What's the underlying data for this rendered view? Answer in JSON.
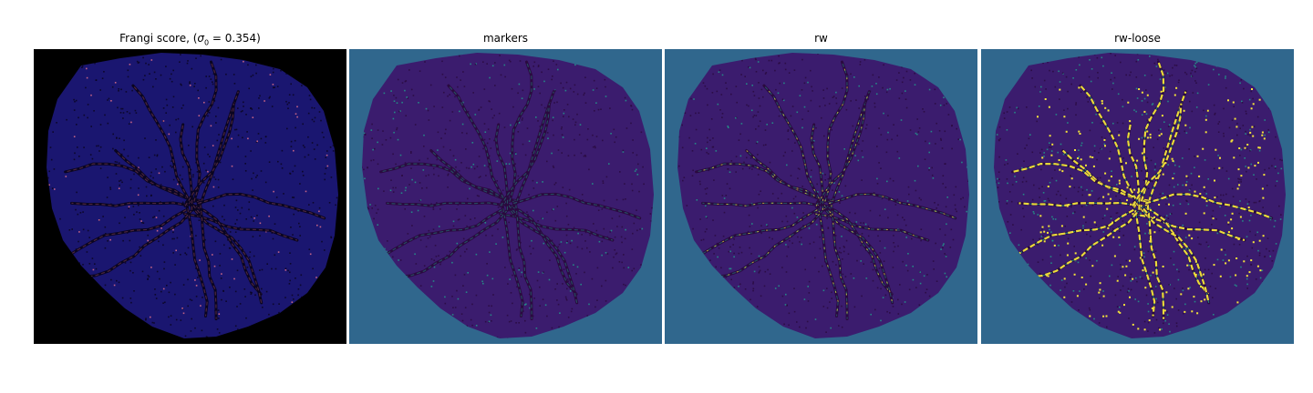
{
  "panels": [
    {
      "id": "frangi",
      "title_prefix": "Frangi score, (",
      "title_symbol": "σ",
      "title_sub": "0",
      "title_suffix": " = 0.354)",
      "background": "#000000",
      "tissue_color": "#1a1670",
      "vessel_color": "#0a0520",
      "highlight_color": "#e0708a",
      "highlight_density": 0.3
    },
    {
      "id": "markers",
      "title": "markers",
      "background": "#30678d",
      "tissue_color": "#3b1c6e",
      "vessel_color": "#2a0a3f",
      "highlight_color": "#23988b",
      "highlight_density": 0.45
    },
    {
      "id": "rw",
      "title": "rw",
      "background": "#30678d",
      "tissue_color": "#3b1c6e",
      "vessel_color": "#2a0a3f",
      "highlight_color": "#23988b",
      "accent_color": "#f5e43a",
      "highlight_density": 0.45
    },
    {
      "id": "rw-loose",
      "title": "rw-loose",
      "background": "#30678d",
      "tissue_color": "#3b1c6e",
      "vessel_color": "#2a0a3f",
      "highlight_color": "#23988b",
      "accent_color": "#f5e43a",
      "highlight_density": 0.8
    }
  ]
}
